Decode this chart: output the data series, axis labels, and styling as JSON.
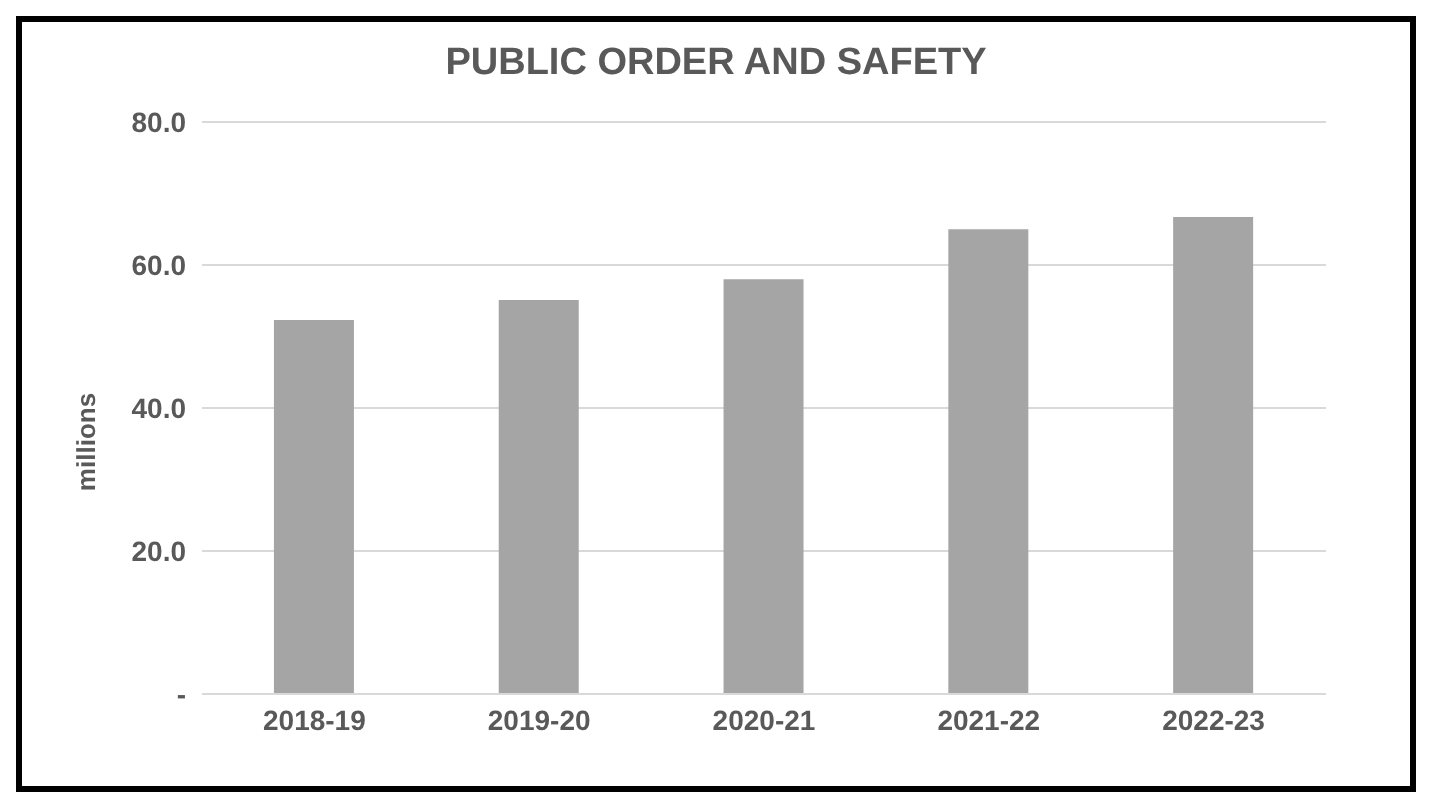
{
  "chart_data": {
    "type": "bar",
    "title": "PUBLIC ORDER AND SAFETY",
    "ylabel": "millions",
    "categories": [
      "2018-19",
      "2019-20",
      "2020-21",
      "2021-22",
      "2022-23"
    ],
    "values": [
      52.3,
      55.1,
      58.0,
      65.0,
      66.7
    ],
    "color": "#a5a5a5",
    "ylim": [
      0,
      80
    ],
    "yticks": [
      {
        "value": 0,
        "label": "-"
      },
      {
        "value": 20,
        "label": "20.0"
      },
      {
        "value": 40,
        "label": "40.0"
      },
      {
        "value": 60,
        "label": "60.0"
      },
      {
        "value": 80,
        "label": "80.0"
      }
    ],
    "grid": "y"
  }
}
